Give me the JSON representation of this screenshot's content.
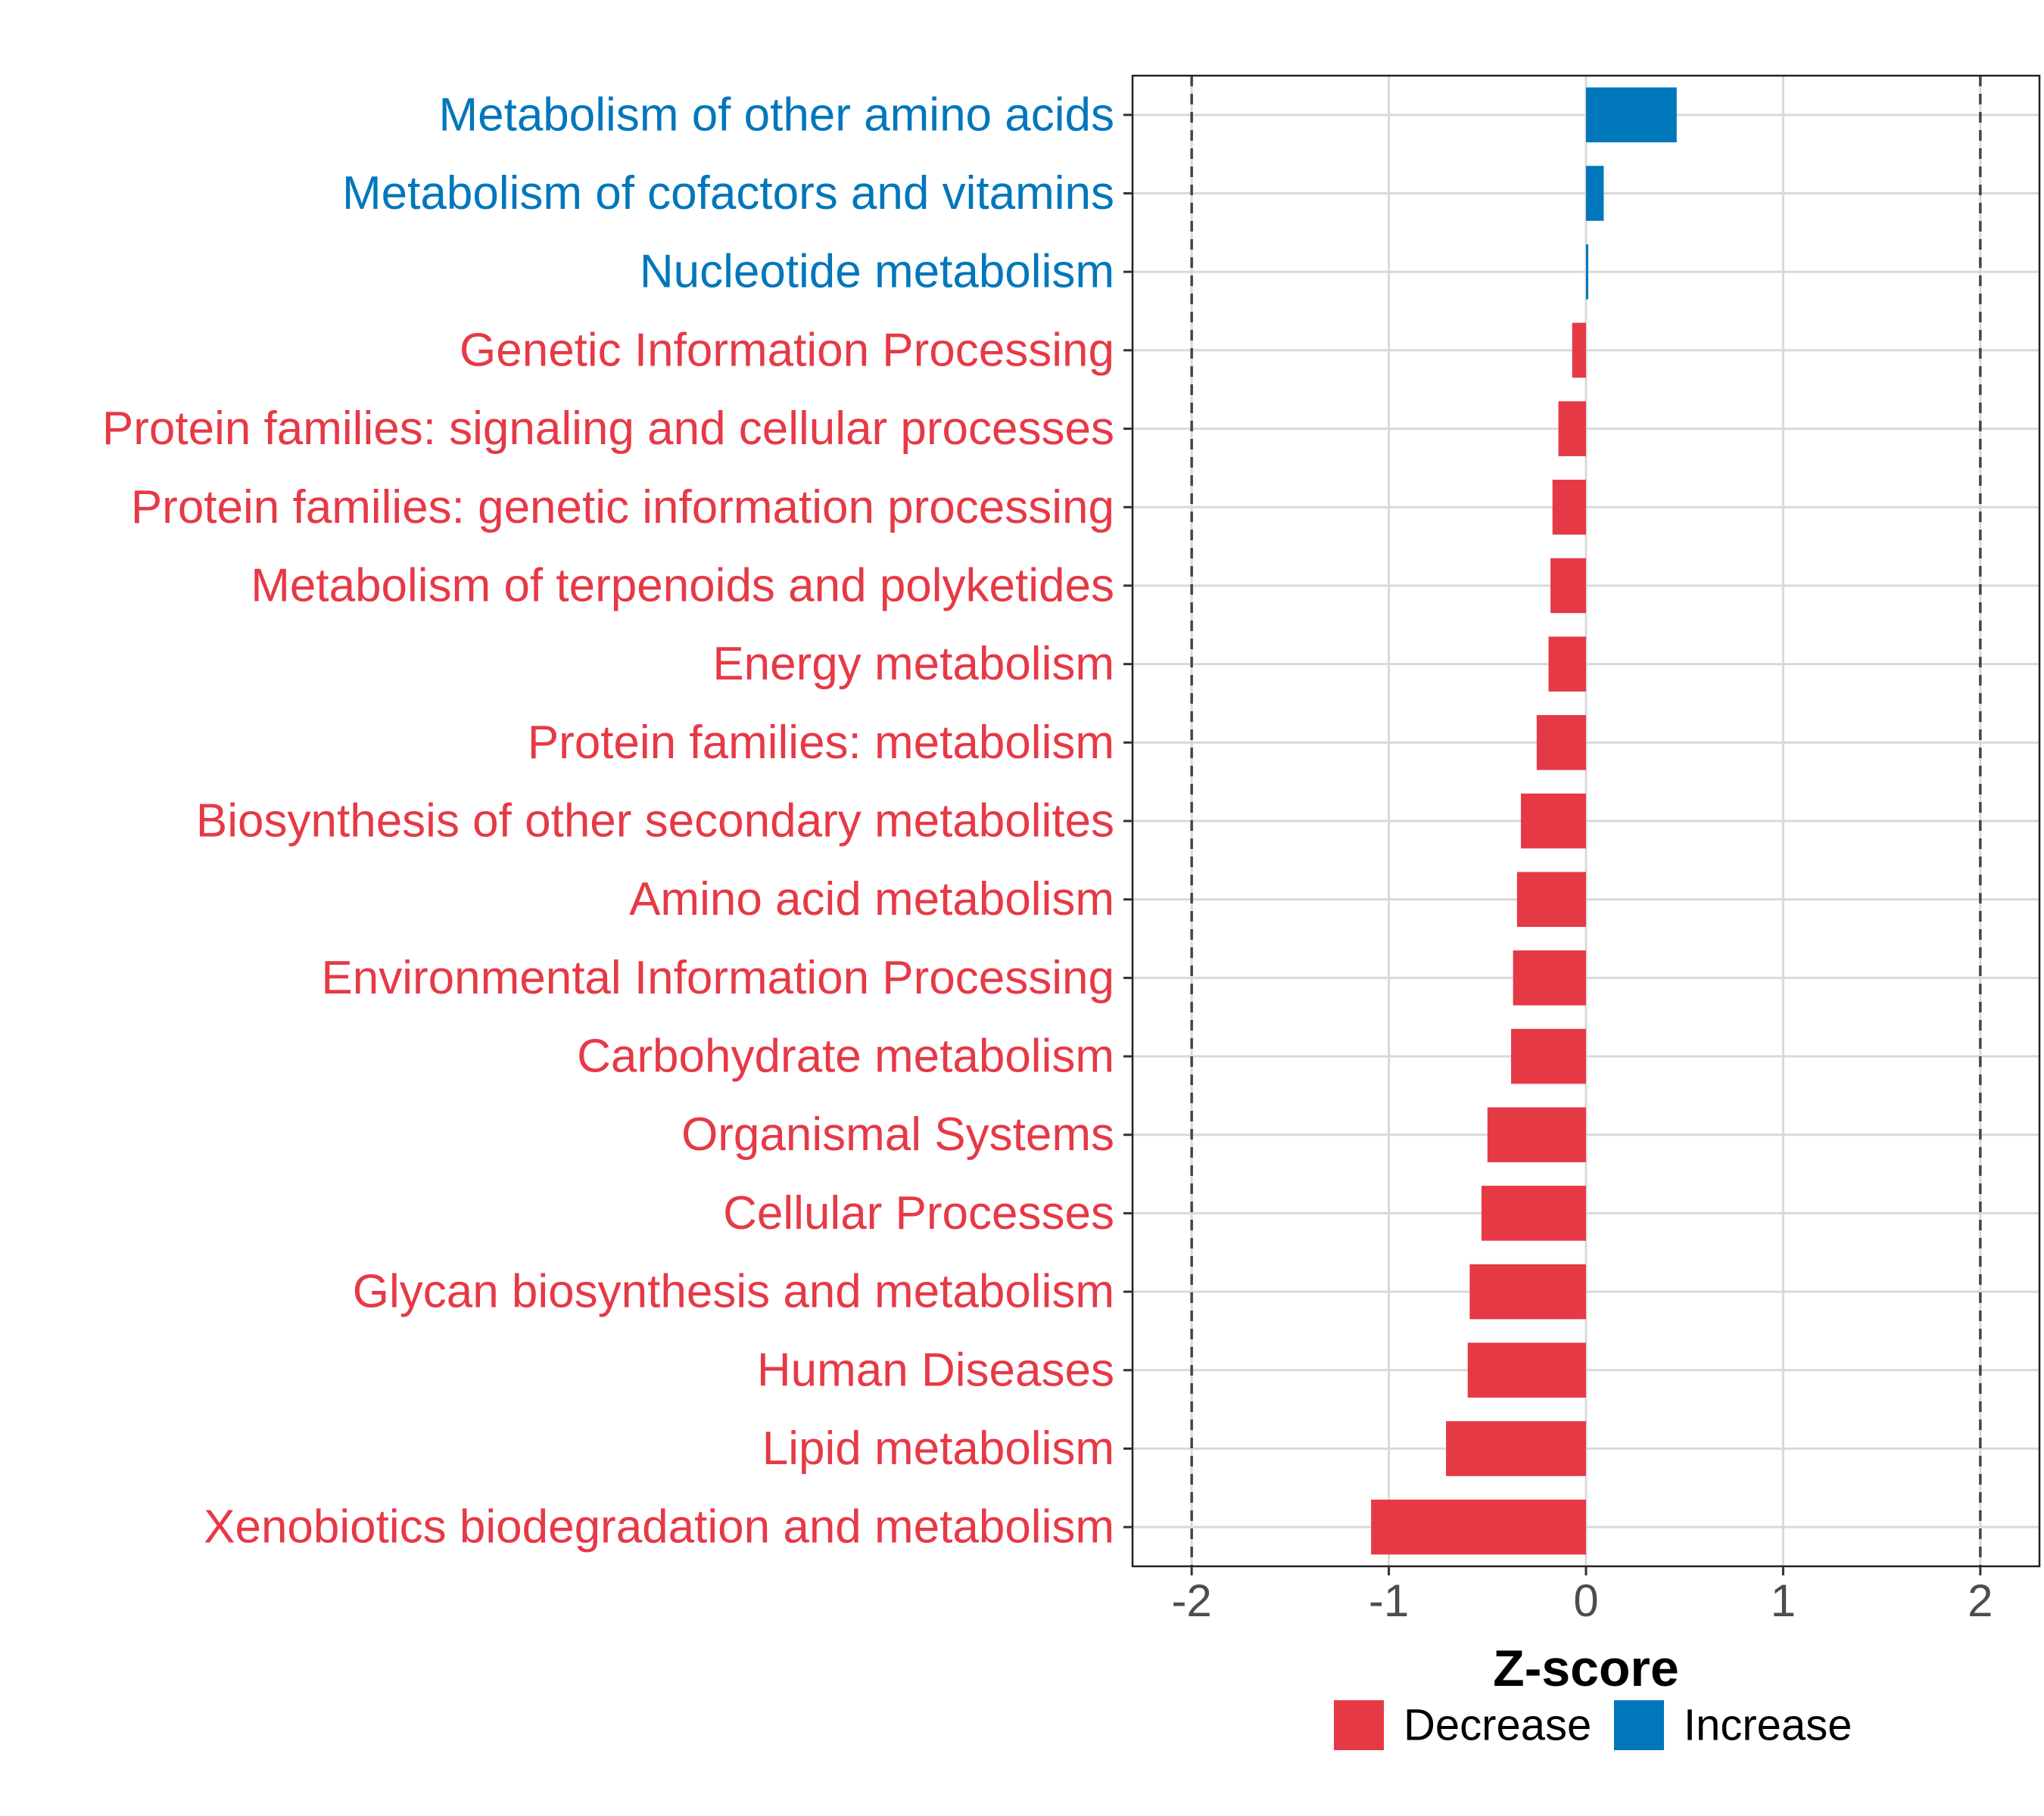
{
  "chart_data": {
    "type": "bar",
    "orientation": "horizontal",
    "categories": [
      "Metabolism of other amino acids",
      "Metabolism of cofactors and vitamins",
      "Nucleotide metabolism",
      "Genetic Information Processing",
      "Protein families: signaling and cellular processes",
      "Protein families: genetic information processing",
      "Metabolism of terpenoids and polyketides",
      "Energy metabolism",
      "Protein families: metabolism",
      "Biosynthesis of other secondary metabolites",
      "Amino acid metabolism",
      "Environmental Information Processing",
      "Carbohydrate metabolism",
      "Organismal Systems",
      "Cellular Processes",
      "Glycan biosynthesis and metabolism",
      "Human Diseases",
      "Lipid metabolism",
      "Xenobiotics biodegradation and metabolism"
    ],
    "values": [
      0.46,
      0.09,
      0.01,
      -0.07,
      -0.14,
      -0.17,
      -0.18,
      -0.19,
      -0.25,
      -0.33,
      -0.35,
      -0.37,
      -0.38,
      -0.5,
      -0.53,
      -0.59,
      -0.6,
      -0.71,
      -1.09
    ],
    "groups": [
      "Increase",
      "Increase",
      "Increase",
      "Decrease",
      "Decrease",
      "Decrease",
      "Decrease",
      "Decrease",
      "Decrease",
      "Decrease",
      "Decrease",
      "Decrease",
      "Decrease",
      "Decrease",
      "Decrease",
      "Decrease",
      "Decrease",
      "Decrease",
      "Decrease"
    ],
    "xlabel": "Z-score",
    "ylabel": "",
    "xlim": [
      -2.3,
      2.3
    ],
    "xticks": [
      -2,
      -1,
      0,
      1,
      2
    ],
    "xtick_labels": [
      "-2",
      "-1",
      "0",
      "1",
      "2"
    ],
    "reference_lines": [
      -2,
      2
    ],
    "grid": true,
    "legend": {
      "position": "bottom",
      "entries": [
        {
          "label": "Decrease",
          "color": "#E63946"
        },
        {
          "label": "Increase",
          "color": "#0077BB"
        }
      ]
    },
    "colors": {
      "Decrease": "#E63946",
      "Increase": "#0077BB"
    }
  }
}
